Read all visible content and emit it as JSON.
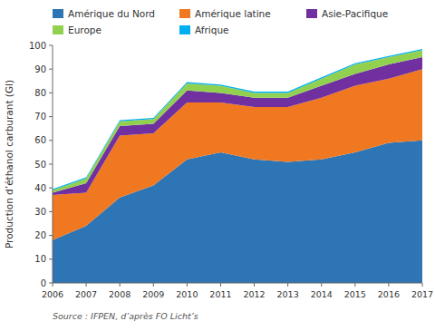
{
  "chart_data": {
    "type": "area",
    "stacked": true,
    "x": [
      2006,
      2007,
      2008,
      2009,
      2010,
      2011,
      2012,
      2013,
      2014,
      2015,
      2016,
      2017
    ],
    "series": [
      {
        "name": "Amérique du Nord",
        "color": "#2E75B6",
        "values": [
          18,
          24,
          36,
          41,
          52,
          55,
          52,
          51,
          52,
          55,
          59,
          60
        ]
      },
      {
        "name": "Amérique latine",
        "color": "#F07820",
        "values": [
          19,
          14,
          26,
          22,
          24,
          21,
          22,
          23,
          26,
          28,
          27,
          30
        ]
      },
      {
        "name": "Asie-Pacifique",
        "color": "#7030A0",
        "values": [
          1,
          4,
          4,
          4,
          5,
          4,
          4,
          4,
          5,
          5,
          6,
          5
        ]
      },
      {
        "name": "Europe",
        "color": "#92D050",
        "values": [
          1,
          2,
          2,
          2,
          3,
          3,
          2,
          2,
          3,
          4,
          3,
          3
        ]
      },
      {
        "name": "Afrique",
        "color": "#00B0F0",
        "values": [
          0.5,
          0.5,
          0.5,
          0.5,
          0.5,
          0.5,
          0.5,
          0.5,
          0.5,
          0.5,
          0.5,
          0.5
        ]
      }
    ],
    "y_label": "Production d’éthanol carburant (Gl)",
    "xlim": [
      2006,
      2017
    ],
    "xticks": [
      2006,
      2007,
      2008,
      2009,
      2010,
      2011,
      2012,
      2013,
      2014,
      2015,
      2016,
      2017
    ],
    "ylim": [
      0,
      100
    ],
    "yticks": [
      0,
      10,
      20,
      30,
      40,
      50,
      60,
      70,
      80,
      90,
      100
    ],
    "source": "Source : IFPEN, d’après FO Licht’s"
  }
}
